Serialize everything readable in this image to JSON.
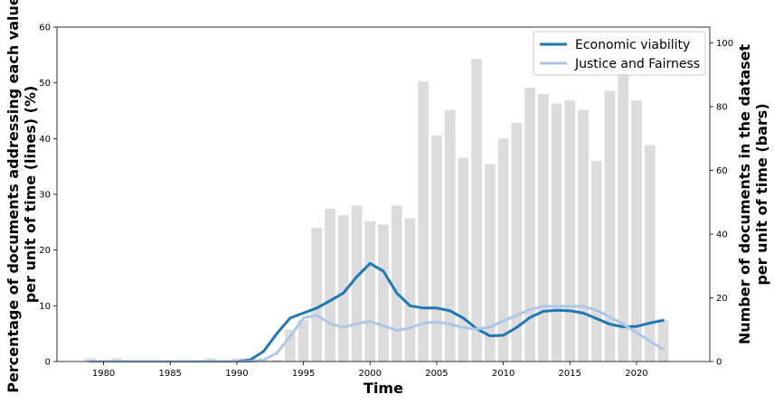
{
  "chart_data": {
    "type": "bar+line",
    "xlabel": "Time",
    "ylabel_left": "Percentage of documents addressing each value per unit of time (lines)  (%)",
    "ylabel_left_lines": [
      "Percentage of documents addressing each value",
      "per unit of time (lines)  (%)"
    ],
    "ylabel_right": "Number of documents in the dataset per unit of time (bars)",
    "ylabel_right_lines": [
      "Number of documents in the dataset",
      "per unit of time (bars)"
    ],
    "xlim": [
      1976.5,
      2025.5
    ],
    "ylim_left": [
      0,
      60
    ],
    "ylim_right": [
      0,
      105
    ],
    "xticks": [
      1980,
      1985,
      1990,
      1995,
      2000,
      2005,
      2010,
      2015,
      2020
    ],
    "yticks_left": [
      0,
      10,
      20,
      30,
      40,
      50,
      60
    ],
    "yticks_right": [
      0,
      20,
      40,
      60,
      80,
      100
    ],
    "bars": {
      "color": "#dcdcdc",
      "x": [
        1979,
        1980,
        1981,
        1982,
        1983,
        1984,
        1985,
        1986,
        1987,
        1988,
        1989,
        1990,
        1991,
        1992,
        1993,
        1994,
        1995,
        1996,
        1997,
        1998,
        1999,
        2000,
        2001,
        2002,
        2003,
        2004,
        2005,
        2006,
        2007,
        2008,
        2009,
        2010,
        2011,
        2012,
        2013,
        2014,
        2015,
        2016,
        2017,
        2018,
        2019,
        2020,
        2021,
        2022
      ],
      "values": [
        1,
        0.5,
        1,
        0.3,
        0.3,
        0.3,
        0.3,
        0.3,
        0.3,
        1,
        0.3,
        1,
        1,
        0.5,
        0.5,
        10,
        13,
        42,
        48,
        46,
        49,
        44,
        43,
        49,
        45,
        88,
        71,
        79,
        64,
        95,
        62,
        70,
        75,
        86,
        84,
        81,
        82,
        79,
        63,
        85,
        91,
        82,
        68,
        13
      ]
    },
    "legend_position": "upper-right",
    "series": [
      {
        "name": "Economic viability",
        "color": "#1f77b4",
        "x": [
          1979,
          1980,
          1981,
          1982,
          1983,
          1984,
          1985,
          1986,
          1987,
          1988,
          1989,
          1990,
          1991,
          1992,
          1993,
          1994,
          1995,
          1996,
          1997,
          1998,
          1999,
          2000,
          2001,
          2002,
          2003,
          2004,
          2005,
          2006,
          2007,
          2008,
          2009,
          2010,
          2011,
          2012,
          2013,
          2014,
          2015,
          2016,
          2017,
          2018,
          2019,
          2020,
          2021,
          2022
        ],
        "values": [
          0,
          0,
          0,
          0,
          0,
          0,
          0,
          0,
          0,
          0,
          0,
          0,
          0.3,
          1.8,
          5.0,
          7.8,
          8.7,
          9.6,
          10.9,
          12.3,
          15.2,
          17.6,
          16.2,
          12.3,
          10.0,
          9.6,
          9.6,
          9.1,
          7.8,
          5.9,
          4.6,
          4.7,
          6.1,
          7.9,
          9.0,
          9.2,
          9.1,
          8.7,
          7.7,
          6.7,
          6.2,
          6.3,
          6.9,
          7.4
        ]
      },
      {
        "name": "Justice and Fairness",
        "color": "#aec7e8",
        "x": [
          1979,
          1980,
          1981,
          1982,
          1983,
          1984,
          1985,
          1986,
          1987,
          1988,
          1989,
          1990,
          1991,
          1992,
          1993,
          1994,
          1995,
          1996,
          1997,
          1998,
          1999,
          2000,
          2001,
          2002,
          2003,
          2004,
          2005,
          2006,
          2007,
          2008,
          2009,
          2010,
          2011,
          2012,
          2013,
          2014,
          2015,
          2016,
          2017,
          2018,
          2019,
          2020,
          2021,
          2022
        ],
        "values": [
          0,
          0,
          0,
          0,
          0,
          0,
          0,
          0,
          0,
          0,
          0,
          0,
          0,
          0.3,
          1.5,
          4.5,
          7.8,
          8.3,
          6.8,
          6.1,
          6.8,
          7.2,
          6.4,
          5.6,
          6.0,
          6.9,
          7.1,
          6.7,
          6.1,
          5.8,
          6.2,
          7.3,
          8.3,
          9.3,
          9.9,
          9.9,
          9.9,
          9.9,
          9.2,
          8.0,
          6.7,
          5.2,
          3.7,
          2.2
        ]
      }
    ]
  }
}
